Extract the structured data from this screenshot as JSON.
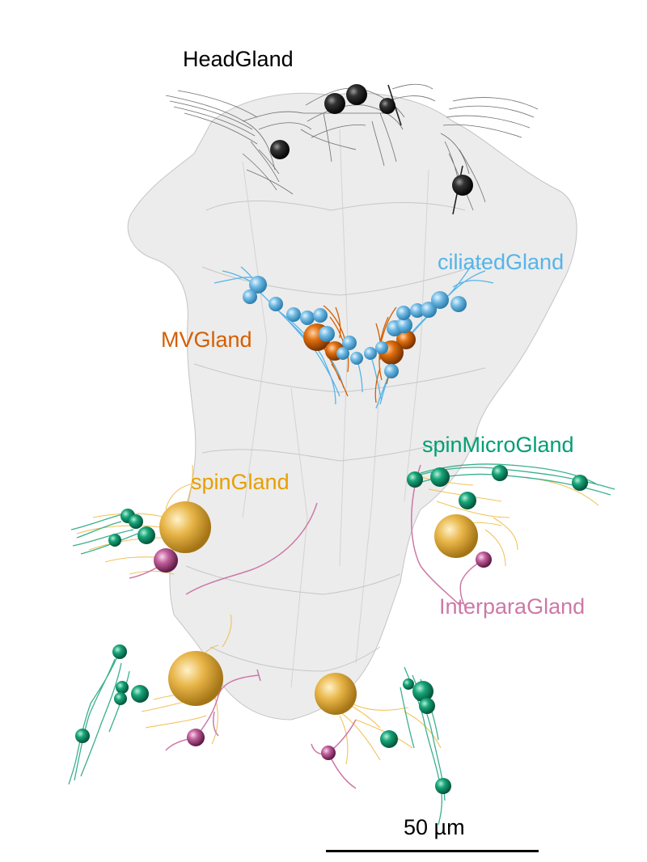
{
  "labels": {
    "head": "HeadGland",
    "ciliated": "ciliatedGland",
    "mv": "MVGland",
    "spinMicro": "spinMicroGland",
    "spin": "spinGland",
    "interpara": "InterparaGland"
  },
  "colors": {
    "head": "#000000",
    "ciliated": "#56b4e9",
    "mv": "#d55e00",
    "spinMicro": "#009e73",
    "spin": "#e69f00",
    "interpara": "#cc79a7",
    "body": "#cfcfcf"
  },
  "scale_bar": {
    "label": "50 µm"
  }
}
